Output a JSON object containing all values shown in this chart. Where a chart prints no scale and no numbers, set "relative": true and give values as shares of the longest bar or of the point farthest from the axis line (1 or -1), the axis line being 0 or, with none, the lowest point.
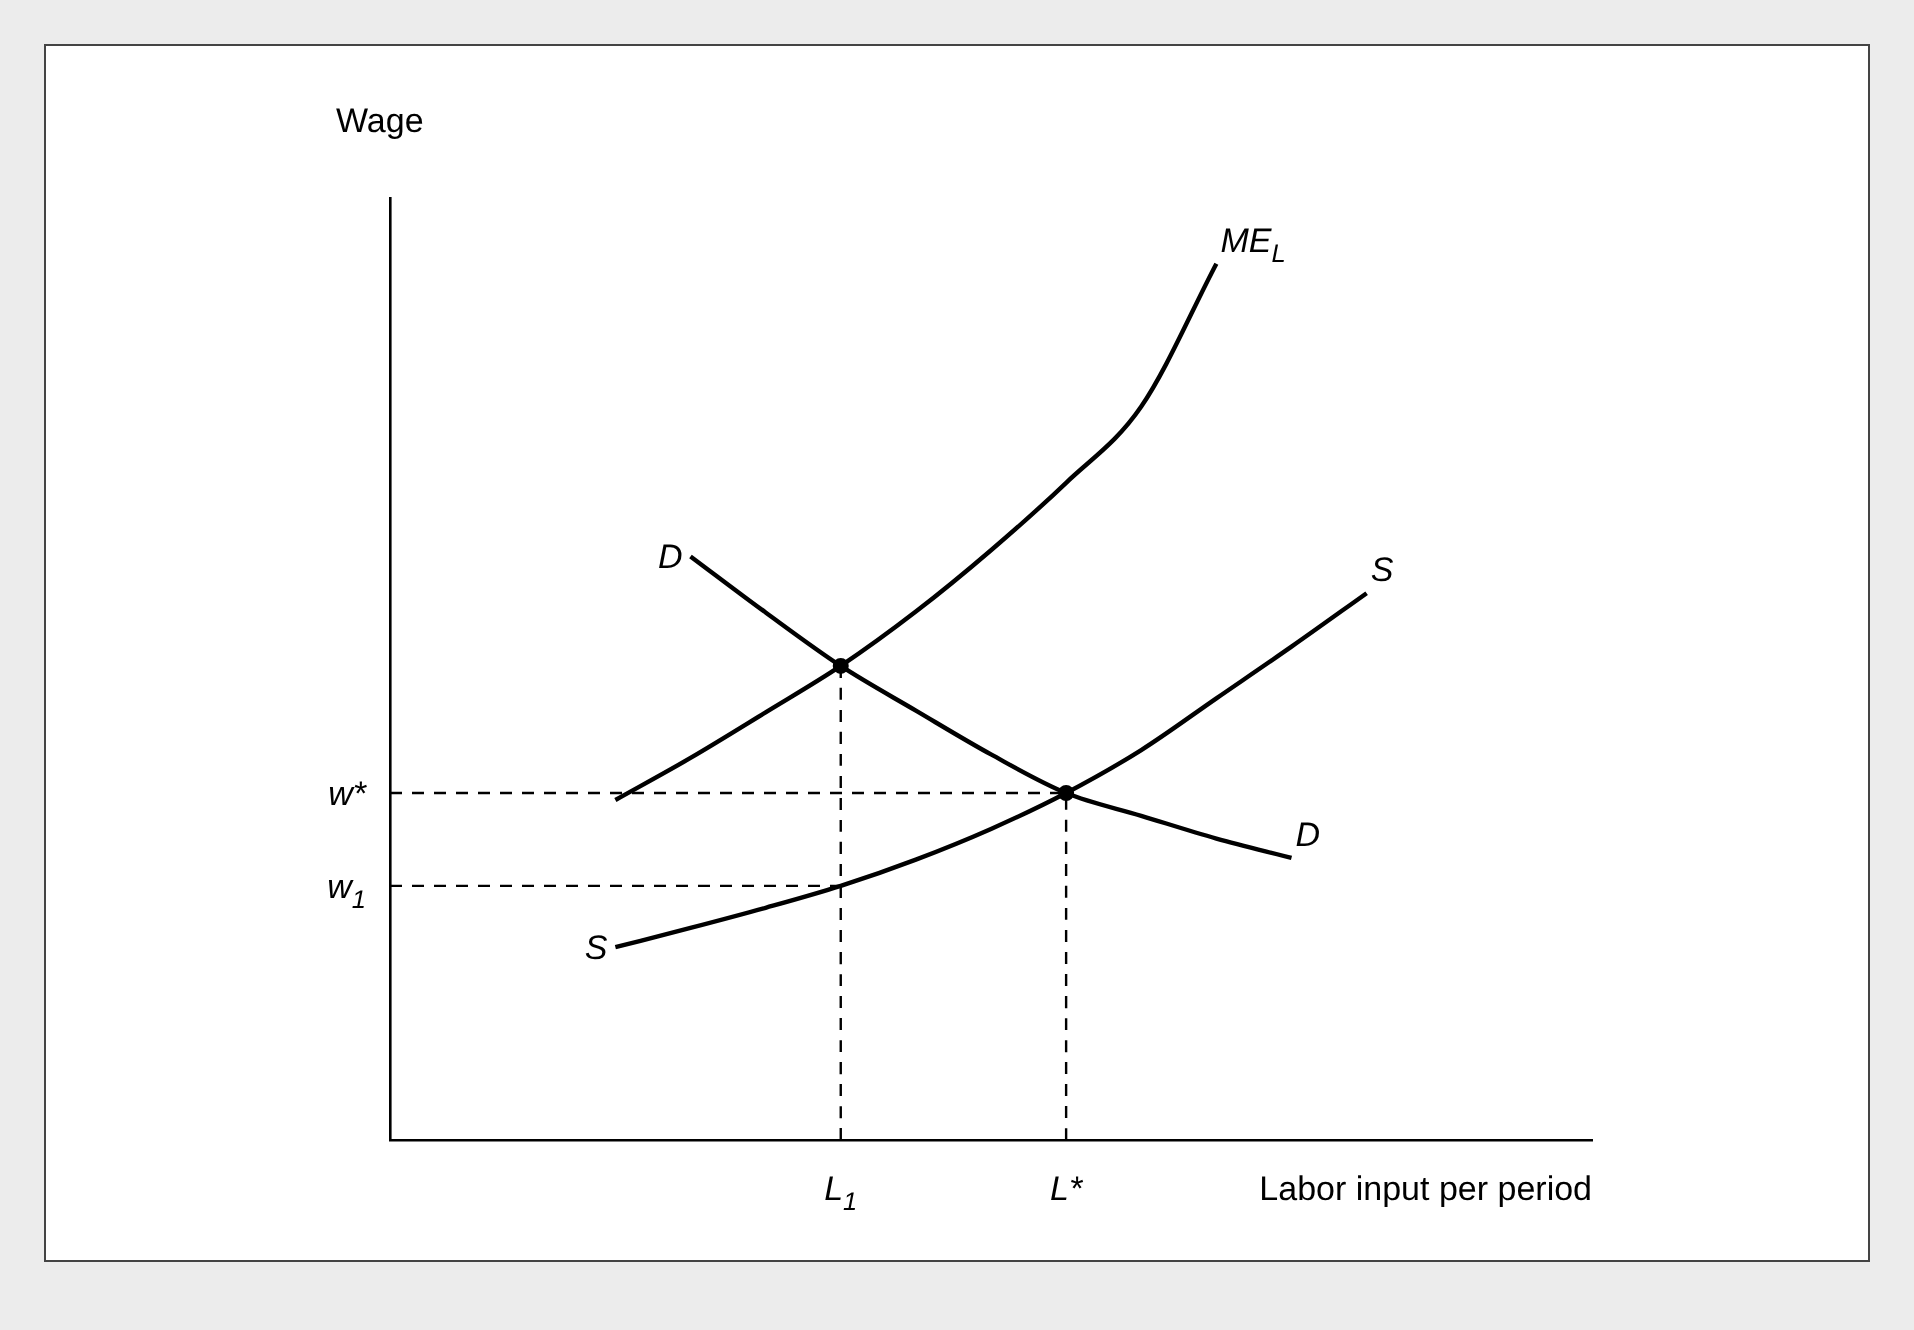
{
  "chart_data": {
    "type": "line",
    "relative": true,
    "xlabel": "Labor input per period",
    "ylabel": "Wage",
    "legend": false,
    "categories": [
      null,
      null,
      null,
      null,
      null,
      null,
      "L$_{1}$",
      null,
      null,
      "L*",
      null,
      null,
      null,
      null,
      null,
      null,
      null
    ],
    "series": [
      {
        "name": "ME$_{L}$",
        "type": "line",
        "color": "#000000",
        "values": [
          null,
          null,
          null,
          0.388,
          0.436,
          0.488,
          0.541,
          0.603,
          0.673,
          0.75,
          0.837,
          1,
          null,
          null,
          null,
          null,
          null
        ]
      },
      {
        "name": "D",
        "type": "line",
        "color": "#000000",
        "values": [
          null,
          null,
          null,
          null,
          0.666,
          0.602,
          0.541,
          0.49,
          0.44,
          0.396,
          0.37,
          0.344,
          0.322,
          null,
          null,
          null,
          null
        ]
      },
      {
        "name": "S",
        "type": "line",
        "color": "#000000",
        "values": [
          null,
          null,
          null,
          0.22,
          0.242,
          0.265,
          0.29,
          0.32,
          0.355,
          0.396,
          0.445,
          0.504,
          0.563,
          0.624,
          null,
          null,
          null
        ]
      },
      {
        "name": "w*",
        "type": "line",
        "color": "#000000",
        "line_style": "dashed",
        "values": [
          0.396,
          0.396,
          0.396,
          0.396,
          0.396,
          0.396,
          0.396,
          0.396,
          0.396,
          0.396,
          null,
          null,
          null,
          null,
          null,
          null,
          null
        ]
      },
      {
        "name": "w$_{1}$",
        "type": "line",
        "color": "#000000",
        "line_style": "dashed",
        "values": [
          0.29,
          0.29,
          0.29,
          0.29,
          0.29,
          0.29,
          0.29,
          null,
          null,
          null,
          null,
          null,
          null,
          null,
          null,
          null,
          null
        ]
      },
      {
        "type": "line",
        "color": "#000000",
        "line_style": "dashed",
        "x": [
          "L$_{1}$",
          "L$_{1}$"
        ],
        "values": [
          0,
          0.541
        ]
      },
      {
        "type": "line",
        "color": "#000000",
        "line_style": "dashed",
        "x": [
          "L*",
          "L*"
        ],
        "values": [
          0,
          0.396
        ]
      },
      {
        "type": "scatter",
        "color": "#000000",
        "marker": "circle",
        "x": [
          "L$_{1}$",
          "L*"
        ],
        "values": [
          0.541,
          0.396
        ]
      }
    ],
    "annotations": [
      "D",
      "S"
    ]
  }
}
